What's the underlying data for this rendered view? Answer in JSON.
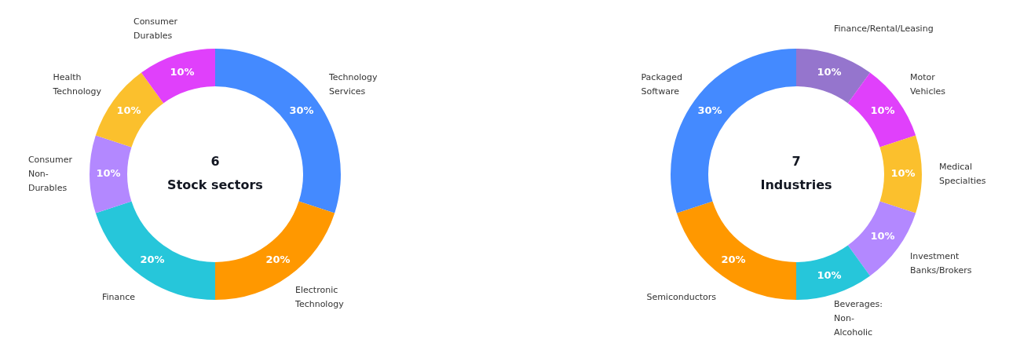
{
  "chart_data": [
    {
      "type": "donut",
      "annotations": [
        "6",
        "Stock sectors"
      ],
      "categories": [
        "Technology Services",
        "Electronic Technology",
        "Finance",
        "Consumer Non-Durables",
        "Health Technology",
        "Consumer Durables"
      ],
      "values": [
        30,
        20,
        20,
        10,
        10,
        10
      ],
      "value_labels": [
        "30%",
        "20%",
        "20%",
        "10%",
        "10%",
        "10%"
      ],
      "colors": [
        "#448aff",
        "#ff9800",
        "#26c6da",
        "#b388ff",
        "#fbc02d",
        "#e040fb"
      ],
      "legend": false
    },
    {
      "type": "donut",
      "annotations": [
        "7",
        "Industries"
      ],
      "categories": [
        "Finance/Rental/Leasing",
        "Motor Vehicles",
        "Medical Specialties",
        "Investment Banks/Brokers",
        "Beverages: Non-Alcoholic",
        "Semiconductors",
        "Packaged Software"
      ],
      "values": [
        10,
        10,
        10,
        10,
        10,
        20,
        30
      ],
      "value_labels": [
        "10%",
        "10%",
        "10%",
        "10%",
        "10%",
        "20%",
        "30%"
      ],
      "colors": [
        "#9575cd",
        "#e040fb",
        "#fbc02d",
        "#b388ff",
        "#26c6da",
        "#ff9800",
        "#448aff"
      ],
      "legend": false
    }
  ]
}
